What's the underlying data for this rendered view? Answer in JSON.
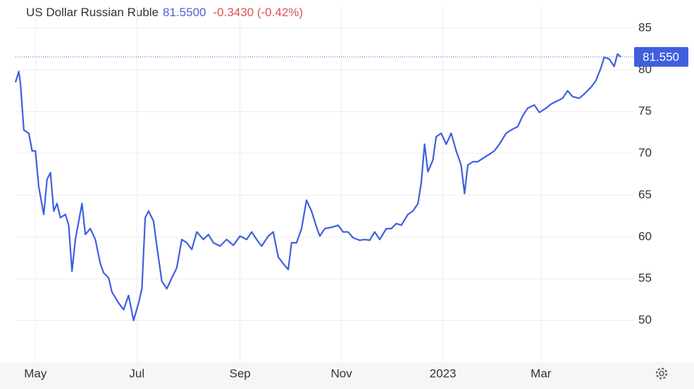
{
  "chart_data": {
    "type": "line",
    "title": "US Dollar Russian Ruble",
    "price": "81.5500",
    "change": "-0.3430 (-0.42%)",
    "price_marker": {
      "value": 81.55,
      "label": "81.550"
    },
    "color": "#3f5fe0",
    "grid": true,
    "xlim": [
      0,
      372
    ],
    "xticks": [
      {
        "value": 12,
        "label": "May"
      },
      {
        "value": 73,
        "label": "Jul"
      },
      {
        "value": 135,
        "label": "Sep"
      },
      {
        "value": 196,
        "label": "Nov"
      },
      {
        "value": 257,
        "label": "2023"
      },
      {
        "value": 316,
        "label": "Mar"
      }
    ],
    "ylim": [
      45,
      86
    ],
    "yticks": [
      50,
      55,
      60,
      65,
      70,
      75,
      80,
      85
    ],
    "x": [
      0,
      2,
      3,
      5,
      8,
      10,
      12,
      14,
      17,
      19,
      21,
      23,
      25,
      27,
      30,
      32,
      34,
      36,
      40,
      42,
      45,
      48,
      51,
      53,
      56,
      58,
      62,
      65,
      68,
      71,
      74,
      76,
      78,
      80,
      83,
      85,
      88,
      91,
      94,
      97,
      100,
      103,
      106,
      109,
      113,
      116,
      119,
      123,
      127,
      131,
      135,
      139,
      142,
      145,
      148,
      152,
      155,
      158,
      161,
      164,
      166,
      169,
      172,
      175,
      178,
      181,
      183,
      186,
      191,
      194,
      197,
      200,
      203,
      207,
      210,
      213,
      216,
      219,
      223,
      226,
      229,
      232,
      236,
      239,
      242,
      244,
      246,
      248,
      251,
      253,
      256,
      259,
      262,
      265,
      268,
      270,
      272,
      275,
      278,
      281,
      285,
      288,
      291,
      295,
      298,
      302,
      305,
      308,
      312,
      315,
      319,
      322,
      325,
      329,
      332,
      335,
      339,
      342,
      346,
      349,
      352,
      354,
      357,
      360,
      362,
      364
    ],
    "values": [
      78.5,
      79.8,
      78.3,
      72.8,
      72.4,
      70.3,
      70.3,
      66,
      62.7,
      66.9,
      67.7,
      63.1,
      64,
      62.3,
      62.7,
      61.4,
      55.9,
      59.7,
      64,
      60.3,
      61,
      59.7,
      56.8,
      55.7,
      55.1,
      53.4,
      52.1,
      51.3,
      53,
      50,
      52.1,
      53.8,
      62.3,
      63.1,
      61.9,
      58.9,
      54.7,
      53.8,
      55.1,
      56.3,
      59.7,
      59.3,
      58.5,
      60.6,
      59.7,
      60.3,
      59.3,
      58.9,
      59.7,
      59,
      60.1,
      59.7,
      60.6,
      59.7,
      58.9,
      60.1,
      60.6,
      57.6,
      56.8,
      56.1,
      59.3,
      59.3,
      61,
      64.4,
      63.1,
      61.2,
      60.1,
      61,
      61.2,
      61.4,
      60.6,
      60.6,
      59.9,
      59.6,
      59.7,
      59.6,
      60.6,
      59.7,
      61,
      61,
      61.6,
      61.4,
      62.7,
      63.1,
      64,
      66.5,
      71.1,
      67.8,
      69.2,
      72,
      72.4,
      71.1,
      72.4,
      70.3,
      68.6,
      65.2,
      68.6,
      69,
      69,
      69.4,
      69.9,
      70.3,
      71.1,
      72.4,
      72.8,
      73.2,
      74.5,
      75.4,
      75.8,
      74.9,
      75.4,
      75.9,
      76.2,
      76.6,
      77.5,
      76.8,
      76.6,
      77.1,
      77.9,
      78.7,
      80.2,
      81.5,
      81.3,
      80.4,
      81.9,
      81.55
    ]
  }
}
